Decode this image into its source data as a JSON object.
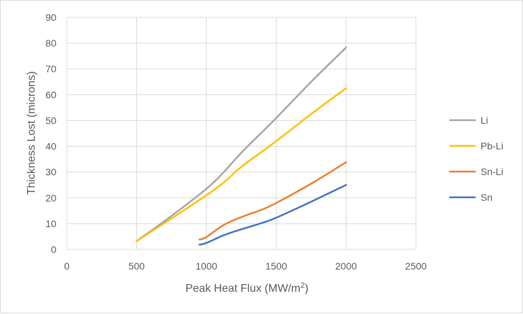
{
  "chart_data": {
    "type": "line",
    "title": "",
    "xlabel": "Peak Heat Flux (MW/m",
    "xlabel_superscript": "2",
    "xlabel_suffix": ")",
    "ylabel": "Thickness Lost (microns)",
    "xlim": [
      0,
      2500
    ],
    "ylim": [
      0,
      90
    ],
    "xticks": [
      0,
      500,
      1000,
      1500,
      2000,
      2500
    ],
    "yticks": [
      0,
      10,
      20,
      30,
      40,
      50,
      60,
      70,
      80,
      90
    ],
    "grid": true,
    "legend_position": "right",
    "series": [
      {
        "name": "Li",
        "color": "#a5a5a5",
        "x": [
          500,
          750,
          1000,
          1125,
          1250,
          1500,
          1750,
          2000
        ],
        "y": [
          3.2,
          13,
          23.5,
          30,
          37.5,
          51,
          65,
          78.3
        ]
      },
      {
        "name": "Pb-Li",
        "color": "#ffc000",
        "x": [
          500,
          750,
          1000,
          1125,
          1250,
          1500,
          1750,
          2000
        ],
        "y": [
          3.2,
          12,
          21,
          26,
          32,
          42,
          52.5,
          62.5
        ]
      },
      {
        "name": "Sn-Li",
        "color": "#ed7d31",
        "x": [
          950,
          1000,
          1125,
          1250,
          1400,
          1500,
          1750,
          2000
        ],
        "y": [
          3.8,
          4.8,
          9.5,
          12.5,
          15.5,
          18,
          25.5,
          33.8
        ]
      },
      {
        "name": "Sn",
        "color": "#4472c4",
        "x": [
          950,
          1000,
          1125,
          1250,
          1400,
          1500,
          1750,
          2000
        ],
        "y": [
          1.8,
          2.5,
          5.5,
          7.8,
          10.3,
          12.3,
          18.5,
          25
        ]
      }
    ]
  }
}
